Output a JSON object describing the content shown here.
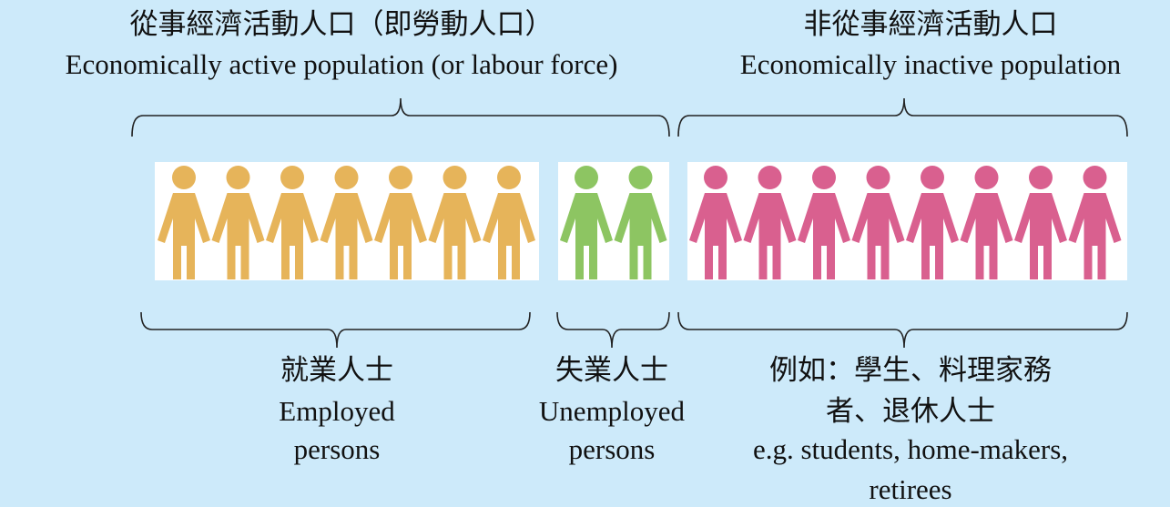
{
  "header": {
    "active": {
      "title_zh": "從事經濟活動人口（即勞動人口）",
      "title_en": "Economically active population (or labour force)"
    },
    "inactive": {
      "title_zh": "非從事經濟活動人口",
      "title_en": "Economically inactive population"
    }
  },
  "groups": [
    {
      "label_zh": [
        "就業人士"
      ],
      "label_en": [
        "Employed",
        "persons"
      ]
    },
    {
      "label_zh": [
        "失業人士"
      ],
      "label_en": [
        "Unemployed",
        "persons"
      ]
    },
    {
      "label_zh": [
        "例如：學生、料理家務",
        "者、退休人士"
      ],
      "label_en": [
        "e.g. students, home-makers,",
        "retirees"
      ]
    }
  ]
}
